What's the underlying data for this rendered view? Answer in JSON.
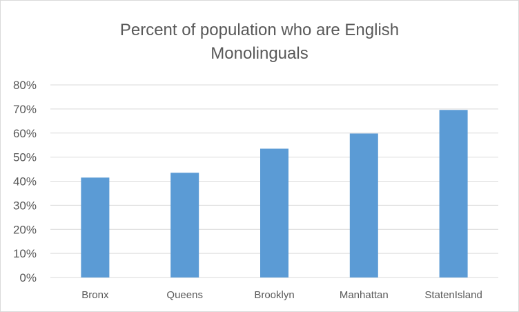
{
  "chart_data": {
    "type": "bar",
    "title_lines": [
      "Percent of population who are English",
      "Monolinguals"
    ],
    "categories": [
      "Bronx",
      "Queens",
      "Brooklyn",
      "Manhattan",
      "StatenIsland"
    ],
    "values": [
      41.5,
      43.5,
      53.5,
      59.8,
      69.6
    ],
    "y_ticks": [
      "0%",
      "10%",
      "20%",
      "30%",
      "40%",
      "50%",
      "60%",
      "70%",
      "80%"
    ],
    "ylim": [
      0,
      80
    ],
    "grid": true,
    "bar_color": "#5b9bd5",
    "grid_color": "#d9d9d9"
  }
}
